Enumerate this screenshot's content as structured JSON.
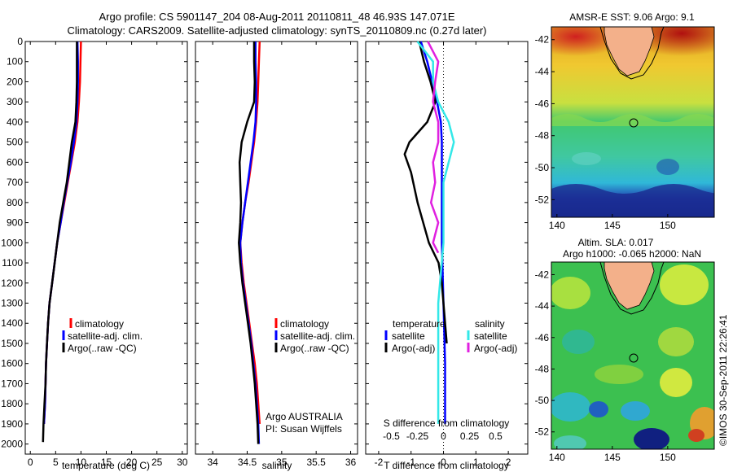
{
  "header": {
    "line1": "Argo profile: CS 5901147_204 08-Aug-2011 20110811_48 46.93S 147.071E",
    "line2": "Climatology: CARS2009. Satellite-adjusted climatology: synTS_20110809.nc (0.27d later)"
  },
  "colors": {
    "climatology": "#ff0000",
    "satellite": "#0000ff",
    "argo": "#000000",
    "satellite_salinity": "#33e8e8",
    "argo_salinity": "#e020e0"
  },
  "chart_data": [
    {
      "type": "line",
      "panel": "temperature",
      "xlabel": "temperature (deg C)",
      "xlim": [
        -1,
        31
      ],
      "xticks": [
        "0",
        "5",
        "10",
        "15",
        "20",
        "25",
        "30"
      ],
      "ylim": [
        2050,
        0
      ],
      "yticks": [
        "0",
        "100",
        "200",
        "300",
        "400",
        "500",
        "600",
        "700",
        "800",
        "900",
        "1000",
        "1100",
        "1200",
        "1300",
        "1400",
        "1500",
        "1600",
        "1700",
        "1800",
        "1900",
        "2000"
      ],
      "legend": [
        "climatology",
        "satellite-adj. clim.",
        "Argo(..raw -QC)"
      ],
      "series": [
        {
          "name": "climatology",
          "color": "#ff0000",
          "points": [
            [
              10.0,
              0
            ],
            [
              9.9,
              100
            ],
            [
              9.8,
              200
            ],
            [
              9.6,
              300
            ],
            [
              9.3,
              400
            ],
            [
              8.8,
              500
            ],
            [
              8.1,
              600
            ],
            [
              7.4,
              700
            ],
            [
              6.7,
              800
            ],
            [
              6.0,
              900
            ],
            [
              5.3,
              1000
            ],
            [
              4.8,
              1100
            ],
            [
              4.3,
              1200
            ],
            [
              3.8,
              1300
            ],
            [
              3.5,
              1400
            ],
            [
              3.3,
              1500
            ],
            [
              3.1,
              1600
            ],
            [
              3.0,
              1700
            ],
            [
              2.9,
              1800
            ],
            [
              2.7,
              1900
            ]
          ]
        },
        {
          "name": "satellite-adj. clim.",
          "color": "#0000ff",
          "points": [
            [
              9.3,
              0
            ],
            [
              9.4,
              100
            ],
            [
              9.4,
              200
            ],
            [
              9.3,
              300
            ],
            [
              9.1,
              400
            ],
            [
              8.6,
              500
            ],
            [
              8.0,
              600
            ],
            [
              7.3,
              700
            ],
            [
              6.6,
              800
            ],
            [
              6.0,
              900
            ],
            [
              5.3,
              1000
            ],
            [
              4.8,
              1100
            ],
            [
              4.3,
              1200
            ],
            [
              3.8,
              1300
            ],
            [
              3.5,
              1400
            ],
            [
              3.3,
              1500
            ],
            [
              3.1,
              1600
            ],
            [
              3.0,
              1700
            ],
            [
              2.9,
              1800
            ],
            [
              2.7,
              1900
            ]
          ]
        },
        {
          "name": "Argo(..raw -QC)",
          "color": "#000000",
          "points": [
            [
              9.2,
              0
            ],
            [
              9.2,
              100
            ],
            [
              9.2,
              200
            ],
            [
              9.1,
              300
            ],
            [
              8.9,
              400
            ],
            [
              8.2,
              500
            ],
            [
              7.7,
              600
            ],
            [
              7.2,
              700
            ],
            [
              6.5,
              800
            ],
            [
              5.8,
              900
            ],
            [
              5.3,
              1000
            ],
            [
              4.8,
              1100
            ],
            [
              4.3,
              1200
            ],
            [
              3.8,
              1300
            ],
            [
              3.5,
              1400
            ],
            [
              3.3,
              1500
            ],
            [
              3.1,
              1600
            ],
            [
              3.0,
              1700
            ],
            [
              2.8,
              1800
            ],
            [
              2.6,
              1900
            ],
            [
              2.5,
              1990
            ]
          ]
        }
      ]
    },
    {
      "type": "line",
      "panel": "salinity",
      "xlabel": "salinity",
      "xlim": [
        33.75,
        36.1
      ],
      "xticks": [
        "34",
        "34.5",
        "35",
        "35.5",
        "36"
      ],
      "ylim": [
        2050,
        0
      ],
      "legend": [
        "climatology",
        "satellite-adj. clim.",
        "Argo(..raw -QC)"
      ],
      "annotation": [
        "Argo AUSTRALIA",
        "PI: Susan Wijffels"
      ],
      "series": [
        {
          "name": "climatology",
          "color": "#ff0000",
          "points": [
            [
              34.68,
              0
            ],
            [
              34.67,
              100
            ],
            [
              34.66,
              200
            ],
            [
              34.65,
              300
            ],
            [
              34.63,
              400
            ],
            [
              34.6,
              500
            ],
            [
              34.56,
              600
            ],
            [
              34.52,
              700
            ],
            [
              34.47,
              800
            ],
            [
              34.43,
              900
            ],
            [
              34.4,
              1000
            ],
            [
              34.42,
              1100
            ],
            [
              34.45,
              1200
            ],
            [
              34.49,
              1300
            ],
            [
              34.53,
              1400
            ],
            [
              34.57,
              1500
            ],
            [
              34.61,
              1600
            ],
            [
              34.64,
              1700
            ],
            [
              34.66,
              1800
            ],
            [
              34.68,
              1900
            ]
          ]
        },
        {
          "name": "satellite-adj. clim.",
          "color": "#0000ff",
          "points": [
            [
              34.62,
              0
            ],
            [
              34.62,
              100
            ],
            [
              34.63,
              200
            ],
            [
              34.63,
              300
            ],
            [
              34.62,
              400
            ],
            [
              34.59,
              500
            ],
            [
              34.55,
              600
            ],
            [
              34.51,
              700
            ],
            [
              34.47,
              800
            ],
            [
              34.43,
              900
            ],
            [
              34.4,
              1000
            ],
            [
              34.41,
              1100
            ],
            [
              34.44,
              1200
            ],
            [
              34.48,
              1300
            ],
            [
              34.52,
              1400
            ],
            [
              34.56,
              1500
            ],
            [
              34.59,
              1600
            ],
            [
              34.62,
              1700
            ],
            [
              34.64,
              1800
            ],
            [
              34.66,
              1900
            ],
            [
              34.67,
              2000
            ]
          ]
        },
        {
          "name": "Argo(..raw -QC)",
          "color": "#000000",
          "points": [
            [
              34.6,
              0
            ],
            [
              34.6,
              100
            ],
            [
              34.61,
              200
            ],
            [
              34.6,
              300
            ],
            [
              34.5,
              400
            ],
            [
              34.42,
              500
            ],
            [
              34.39,
              600
            ],
            [
              34.4,
              700
            ],
            [
              34.41,
              800
            ],
            [
              34.4,
              900
            ],
            [
              34.38,
              1000
            ],
            [
              34.4,
              1100
            ],
            [
              34.43,
              1200
            ],
            [
              34.47,
              1300
            ],
            [
              34.51,
              1400
            ],
            [
              34.55,
              1500
            ],
            [
              34.58,
              1600
            ],
            [
              34.61,
              1700
            ],
            [
              34.63,
              1800
            ],
            [
              34.65,
              1900
            ],
            [
              34.66,
              2000
            ]
          ]
        }
      ]
    },
    {
      "type": "line",
      "panel": "differences",
      "xlabel": "T difference from climatology",
      "xlabel_top": "S difference from climatology",
      "xlim": [
        -2.4,
        2.6
      ],
      "xticks_bottom": [
        "-2",
        "-1",
        "0",
        "1",
        "2"
      ],
      "xticks_top": [
        "-0.5",
        "-0.25",
        "0",
        "0.25",
        "0.5"
      ],
      "ylim": [
        2050,
        0
      ],
      "legend_headers": [
        "temperature",
        "salinity"
      ],
      "legend": [
        "satellite",
        "Argo(-adj)",
        "satellite",
        "Argo(-adj)"
      ],
      "series": [
        {
          "name": "satellite",
          "group": "temperature",
          "color": "#0000ff",
          "points": [
            [
              -0.7,
              0
            ],
            [
              -0.5,
              100
            ],
            [
              -0.35,
              200
            ],
            [
              -0.2,
              300
            ],
            [
              -0.08,
              400
            ],
            [
              -0.05,
              500
            ],
            [
              -0.05,
              700
            ],
            [
              -0.05,
              1000
            ],
            [
              0.0,
              1300
            ],
            [
              0.05,
              1600
            ],
            [
              0.05,
              1900
            ]
          ]
        },
        {
          "name": "Argo(-adj)",
          "group": "temperature",
          "color": "#000000",
          "points": [
            [
              -0.75,
              0
            ],
            [
              -0.6,
              100
            ],
            [
              -0.4,
              200
            ],
            [
              -0.25,
              300
            ],
            [
              -0.5,
              400
            ],
            [
              -1.05,
              500
            ],
            [
              -1.2,
              560
            ],
            [
              -1.0,
              650
            ],
            [
              -0.8,
              800
            ],
            [
              -0.45,
              1000
            ],
            [
              -0.15,
              1100
            ],
            [
              -0.05,
              1200
            ],
            [
              0.1,
              1500
            ]
          ]
        },
        {
          "name": "satellite",
          "group": "salinity",
          "color": "#33e8e8",
          "points": [
            [
              -0.25,
              0
            ],
            [
              -0.1,
              100
            ],
            [
              -0.1,
              200
            ],
            [
              -0.05,
              300
            ],
            [
              0.05,
              400
            ],
            [
              0.1,
              500
            ],
            [
              0.0,
              700
            ],
            [
              0.0,
              1000
            ],
            [
              -0.05,
              1300
            ],
            [
              -0.05,
              1600
            ],
            [
              -0.05,
              1900
            ]
          ]
        },
        {
          "name": "Argo(-adj)",
          "group": "salinity",
          "color": "#e020e0",
          "points": [
            [
              -0.15,
              0
            ],
            [
              -0.05,
              100
            ],
            [
              -0.08,
              200
            ],
            [
              -0.1,
              300
            ],
            [
              -0.05,
              400
            ],
            [
              -0.05,
              500
            ],
            [
              -0.1,
              600
            ],
            [
              -0.08,
              700
            ],
            [
              -0.12,
              800
            ],
            [
              -0.05,
              900
            ],
            [
              -0.1,
              1000
            ],
            [
              -0.05,
              1050
            ]
          ]
        }
      ]
    },
    {
      "type": "heatmap",
      "panel": "sst_map",
      "title": "AMSR-E SST: 9.06 Argo: 9.1",
      "xticks": [
        "140",
        "145",
        "150"
      ],
      "yticks": [
        "-42",
        "-44",
        "-46",
        "-48",
        "-50",
        "-52"
      ],
      "marker": {
        "lon": 147.071,
        "lat": -46.93
      }
    },
    {
      "type": "heatmap",
      "panel": "sla_map",
      "title_line1": "Altim. SLA: 0.017",
      "title_line2": "Argo h1000: -0.065 h2000: NaN",
      "xticks": [
        "140",
        "145",
        "150"
      ],
      "yticks": [
        "-42",
        "-44",
        "-46",
        "-48",
        "-50",
        "-52"
      ],
      "marker": {
        "lon": 147.071,
        "lat": -46.93
      }
    }
  ],
  "credit": "©IMOS 30-Sep-2011 22:26:41"
}
